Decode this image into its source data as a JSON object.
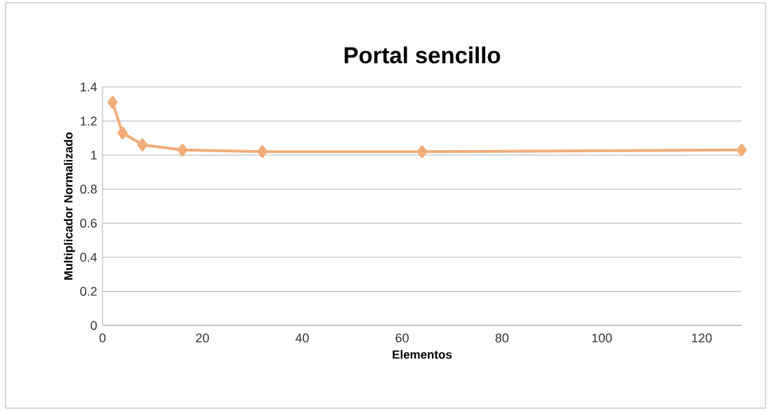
{
  "chart_data": {
    "type": "line",
    "title": "Portal sencillo",
    "xlabel": "Elementos",
    "ylabel": "Multiplicador Normalizado",
    "x": [
      2,
      4,
      8,
      16,
      32,
      64,
      128
    ],
    "series": [
      {
        "color": "#f2ad7a",
        "values": [
          1.31,
          1.13,
          1.06,
          1.03,
          1.02,
          1.02,
          1.03
        ]
      }
    ],
    "xlim": [
      0,
      128
    ],
    "xticks": [
      0,
      20,
      40,
      60,
      80,
      100,
      120
    ],
    "ylim": [
      0,
      1.4
    ],
    "yticks": [
      0,
      0.2,
      0.4,
      0.6,
      0.8,
      1,
      1.2,
      1.4
    ],
    "grid": "y",
    "marker": "diamond",
    "line_style": "solid"
  }
}
